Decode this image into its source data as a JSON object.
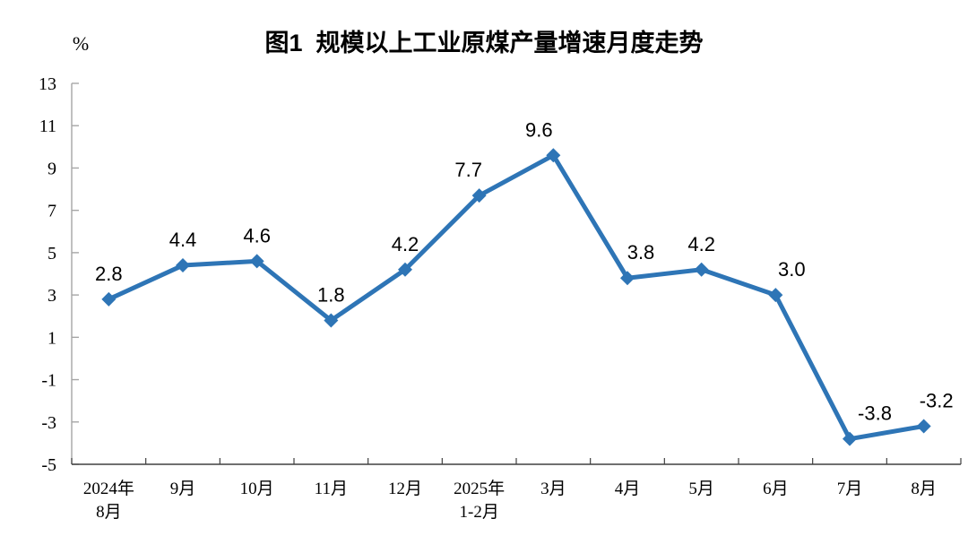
{
  "title": "图1  规模以上工业原煤产量增速月度走势",
  "colors": {
    "line": "#2E75B6",
    "marker": "#2E75B6",
    "text": "#000000",
    "y_axis": "#A6A6A6",
    "x_axis": "#404040"
  },
  "chart_data": {
    "type": "line",
    "title": "图1  规模以上工业原煤产量增速月度走势",
    "ylabel": "%",
    "categories": [
      "2024年\n8月",
      "9月",
      "10月",
      "11月",
      "12月",
      "2025年\n1-2月",
      "3月",
      "4月",
      "5月",
      "6月",
      "7月",
      "8月"
    ],
    "values": [
      2.8,
      4.4,
      4.6,
      1.8,
      4.2,
      7.7,
      9.6,
      3.8,
      4.2,
      3.0,
      -3.8,
      -3.2
    ],
    "labels": [
      "2.8",
      "4.4",
      "4.6",
      "1.8",
      "4.2",
      "7.7",
      "9.6",
      "3.8",
      "4.2",
      "3.0",
      "-3.8",
      "-3.2"
    ],
    "yticks": [
      -5,
      -3,
      -1,
      1,
      3,
      5,
      7,
      9,
      11,
      13
    ],
    "ytick_labels": [
      "-5",
      "-3",
      "-1",
      "1",
      "3",
      "5",
      "7",
      "9",
      "11",
      "13"
    ],
    "ylim": [
      -5,
      13
    ],
    "grid": false,
    "legend": false,
    "marker": "diamond",
    "label_position": "above",
    "label_dx": [
      0,
      0,
      0,
      0,
      0,
      -12,
      -16,
      15,
      0,
      18,
      28,
      14
    ]
  }
}
